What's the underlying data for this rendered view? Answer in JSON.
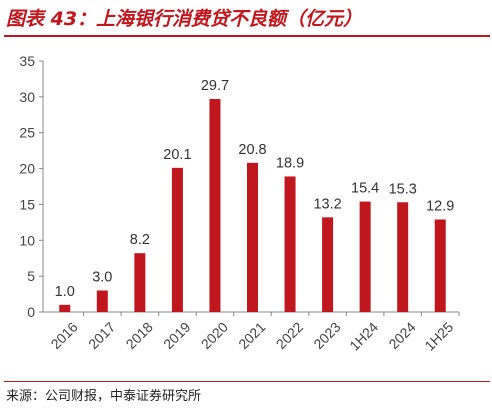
{
  "title": "图表 43：上海银行消费贷不良额（亿元）",
  "source": "来源：公司财报，中泰证券研究所",
  "colors": {
    "accent": "#c0161d",
    "bar": "#c0161d"
  },
  "chart_data": {
    "type": "bar",
    "categories": [
      "2016",
      "2017",
      "2018",
      "2019",
      "2020",
      "2021",
      "2022",
      "2023",
      "1H24",
      "2024",
      "1H25"
    ],
    "values": [
      1.0,
      3.0,
      8.2,
      20.1,
      29.7,
      20.8,
      18.9,
      13.2,
      15.4,
      15.3,
      12.9
    ],
    "data_labels": [
      "1.0",
      "3.0",
      "8.2",
      "20.1",
      "29.7",
      "20.8",
      "18.9",
      "13.2",
      "15.4",
      "15.3",
      "12.9"
    ],
    "yticks": [
      0,
      5,
      10,
      15,
      20,
      25,
      30,
      35
    ],
    "ylim": [
      0,
      35
    ],
    "grid": false,
    "legend": "none"
  }
}
